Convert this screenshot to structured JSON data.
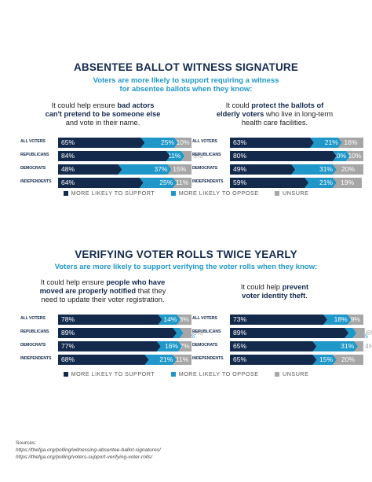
{
  "colors": {
    "support": "#142a4d",
    "oppose": "#1f97c9",
    "unsure": "#a6a6a6",
    "title": "#142a4d",
    "subtitle": "#1f97c9"
  },
  "legend": [
    "MORE LIKELY TO SUPPORT",
    "MORE LIKELY TO OPPOSE",
    "UNSURE"
  ],
  "sections": [
    {
      "title": "ABSENTEE BALLOT WITNESS SIGNATURE",
      "subtitle_lines": [
        "Voters are more likely to support requiring a witness",
        "for absentee ballots when they know:"
      ],
      "panels": [
        {
          "heading": [
            [
              "It could help ensure ",
              "bad actors"
            ],
            [
              "can't pretend to be someone else",
              ""
            ],
            [
              "and vote in their name.",
              ""
            ]
          ]
        },
        {
          "heading": [
            [
              "It could ",
              "protect the ballots of"
            ],
            [
              "elderly voters",
              " who live in long-term"
            ],
            [
              "health care facilities.",
              ""
            ]
          ]
        }
      ]
    },
    {
      "title": "VERIFYING VOTER ROLLS TWICE YEARLY",
      "subtitle_lines": [
        "Voters are more likely to support verifying the voter rolls when they know:"
      ],
      "panels": [
        {
          "heading": [
            [
              "It could help ensure ",
              "people who have"
            ],
            [
              "moved are properly notified",
              " that they"
            ],
            [
              "need to update their voter registration.",
              ""
            ]
          ]
        },
        {
          "heading": [
            [
              "It could help ",
              "prevent"
            ],
            [
              "voter identity theft",
              "."
            ]
          ]
        }
      ]
    }
  ],
  "chart_data": [
    {
      "type": "bar",
      "title": "It could help ensure bad actors can't pretend to be someone else and vote in their name.",
      "categories": [
        "ALL VOTERS",
        "REPUBLICANS",
        "DEMOCRATS",
        "INDEPENDENTS"
      ],
      "series": [
        {
          "name": "MORE LIKELY TO SUPPORT",
          "values": [
            65,
            84,
            48,
            64
          ]
        },
        {
          "name": "MORE LIKELY TO OPPOSE",
          "values": [
            25,
            11,
            37,
            25
          ]
        },
        {
          "name": "UNSURE",
          "values": [
            10,
            5,
            15,
            11
          ]
        }
      ],
      "labels": [
        [
          "65%",
          "25%",
          "10%"
        ],
        [
          "84%",
          "11%",
          "5%"
        ],
        [
          "48%",
          "37%",
          "15%"
        ],
        [
          "64%",
          "25%",
          "11%"
        ]
      ]
    },
    {
      "type": "bar",
      "title": "It could protect the ballots of elderly voters who live in long-term health care facilities.",
      "categories": [
        "ALL VOTERS",
        "REPUBLICANS",
        "DEMOCRATS",
        "INDEPENDENTS"
      ],
      "series": [
        {
          "name": "MORE LIKELY TO SUPPORT",
          "values": [
            63,
            80,
            49,
            59
          ]
        },
        {
          "name": "MORE LIKELY TO OPPOSE",
          "values": [
            21,
            10,
            31,
            21
          ]
        },
        {
          "name": "UNSURE",
          "values": [
            16,
            10,
            20,
            19
          ]
        }
      ],
      "labels": [
        [
          "63%",
          "21%",
          "16%"
        ],
        [
          "80%",
          "10%",
          "10%"
        ],
        [
          "49%",
          "31%",
          "20%"
        ],
        [
          "59%",
          "21%",
          "19%"
        ]
      ]
    },
    {
      "type": "bar",
      "title": "It could help ensure people who have moved are properly notified that they need to update their voter registration.",
      "categories": [
        "ALL VOTERS",
        "REPUBLICANS",
        "DEMOCRATS",
        "INDEPENDENTS"
      ],
      "series": [
        {
          "name": "MORE LIKELY TO SUPPORT",
          "values": [
            78,
            89,
            77,
            68
          ]
        },
        {
          "name": "MORE LIKELY TO OPPOSE",
          "values": [
            14,
            5,
            16,
            21
          ]
        },
        {
          "name": "UNSURE",
          "values": [
            8,
            6,
            7,
            11
          ]
        }
      ],
      "labels": [
        [
          "78%",
          "14%",
          "8%"
        ],
        [
          "89%",
          "5%",
          "6%"
        ],
        [
          "77%",
          "16%",
          "7%"
        ],
        [
          "68%",
          "21%",
          "11%"
        ]
      ]
    },
    {
      "type": "bar",
      "title": "It could help prevent voter identity theft.",
      "categories": [
        "ALL VOTERS",
        "REPUBLICANS",
        "DEMOCRATS",
        "INDEPENDENTS"
      ],
      "series": [
        {
          "name": "MORE LIKELY TO SUPPORT",
          "values": [
            73,
            89,
            65,
            65
          ]
        },
        {
          "name": "MORE LIKELY TO OPPOSE",
          "values": [
            18,
            6,
            31,
            15
          ]
        },
        {
          "name": "UNSURE",
          "values": [
            9,
            6,
            4,
            20
          ]
        }
      ],
      "labels": [
        [
          "73%",
          "18%",
          "9%"
        ],
        [
          "89%",
          "6%",
          "6%"
        ],
        [
          "65%",
          "31%",
          "4%"
        ],
        [
          "65%",
          "15%",
          "20%"
        ]
      ]
    }
  ],
  "sources": {
    "label": "Sources:",
    "urls": [
      "https://thefga.org/polling/witnessing-absentee-ballot-signatures/",
      "https://thefga.org/polling/voters-support-verifying-voter-rolls/"
    ]
  }
}
